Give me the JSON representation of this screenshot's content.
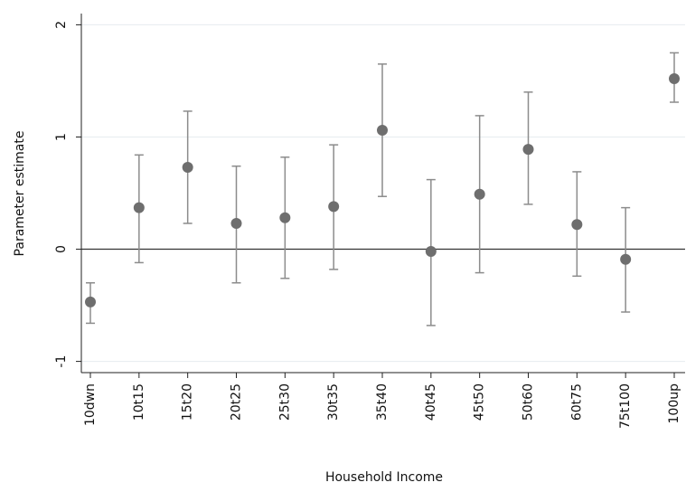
{
  "chart_data": {
    "type": "errorbar",
    "x_label": "Household Income",
    "y_label": "Parameter estimate",
    "categories": [
      "10dwn",
      "10t15",
      "15t20",
      "20t25",
      "25t30",
      "30t35",
      "35t40",
      "40t45",
      "45t50",
      "50t60",
      "60t75",
      "75t100",
      "100up"
    ],
    "values": [
      -0.47,
      0.37,
      0.73,
      0.23,
      0.28,
      0.38,
      1.06,
      -0.02,
      0.49,
      0.89,
      0.22,
      -0.09,
      1.52
    ],
    "lower": [
      -0.66,
      -0.12,
      0.23,
      -0.3,
      -0.26,
      -0.18,
      0.47,
      -0.68,
      -0.21,
      0.4,
      -0.24,
      -0.56,
      1.31
    ],
    "upper": [
      -0.3,
      0.84,
      1.23,
      0.74,
      0.82,
      0.93,
      1.65,
      0.62,
      1.19,
      1.4,
      0.69,
      0.37,
      1.75
    ],
    "color": "#6e6e6e",
    "bar_color": "#8c8c8c",
    "ylim": [
      -1.1,
      2.1
    ],
    "yticks": [
      -1,
      0,
      1,
      2
    ],
    "grid": true,
    "hline": 0
  }
}
